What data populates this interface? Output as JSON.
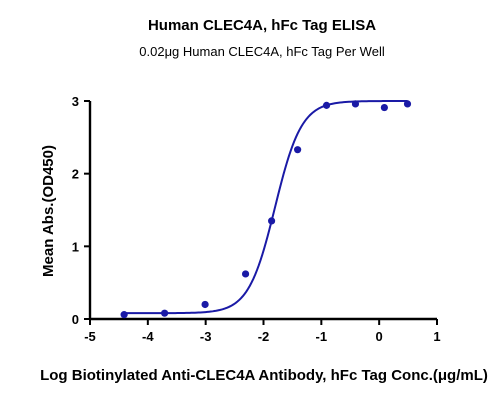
{
  "chart_data": {
    "type": "scatter",
    "title": "Human CLEC4A, hFc Tag ELISA",
    "subtitle": "0.02μg Human CLEC4A, hFc Tag Per Well",
    "xlabel": "Log Biotinylated Anti-CLEC4A Antibody, hFc Tag Conc.(μg/mL)",
    "ylabel": "Mean Abs.(OD450)",
    "xlim": [
      -5,
      1
    ],
    "ylim": [
      0,
      3
    ],
    "x_ticks": [
      -5,
      -4,
      -3,
      -2,
      -1,
      0,
      1
    ],
    "y_ticks": [
      0,
      1,
      2,
      3
    ],
    "grid": false,
    "colors": {
      "series": "#1a1aa6",
      "axis": "#000000"
    },
    "series": [
      {
        "points": [
          {
            "x": -4.41,
            "y": 0.06
          },
          {
            "x": -3.71,
            "y": 0.08
          },
          {
            "x": -3.01,
            "y": 0.2
          },
          {
            "x": -2.31,
            "y": 0.62
          },
          {
            "x": -1.86,
            "y": 1.35
          },
          {
            "x": -1.41,
            "y": 2.33
          },
          {
            "x": -0.91,
            "y": 2.94
          },
          {
            "x": -0.41,
            "y": 2.96
          },
          {
            "x": 0.09,
            "y": 2.91
          },
          {
            "x": 0.49,
            "y": 2.96
          }
        ],
        "fit": {
          "model": "4PL",
          "bottom": 0.08,
          "top": 3.0,
          "logEC50": -1.8,
          "hill": 1.9,
          "x_range": [
            -4.41,
            0.49
          ]
        }
      }
    ]
  }
}
